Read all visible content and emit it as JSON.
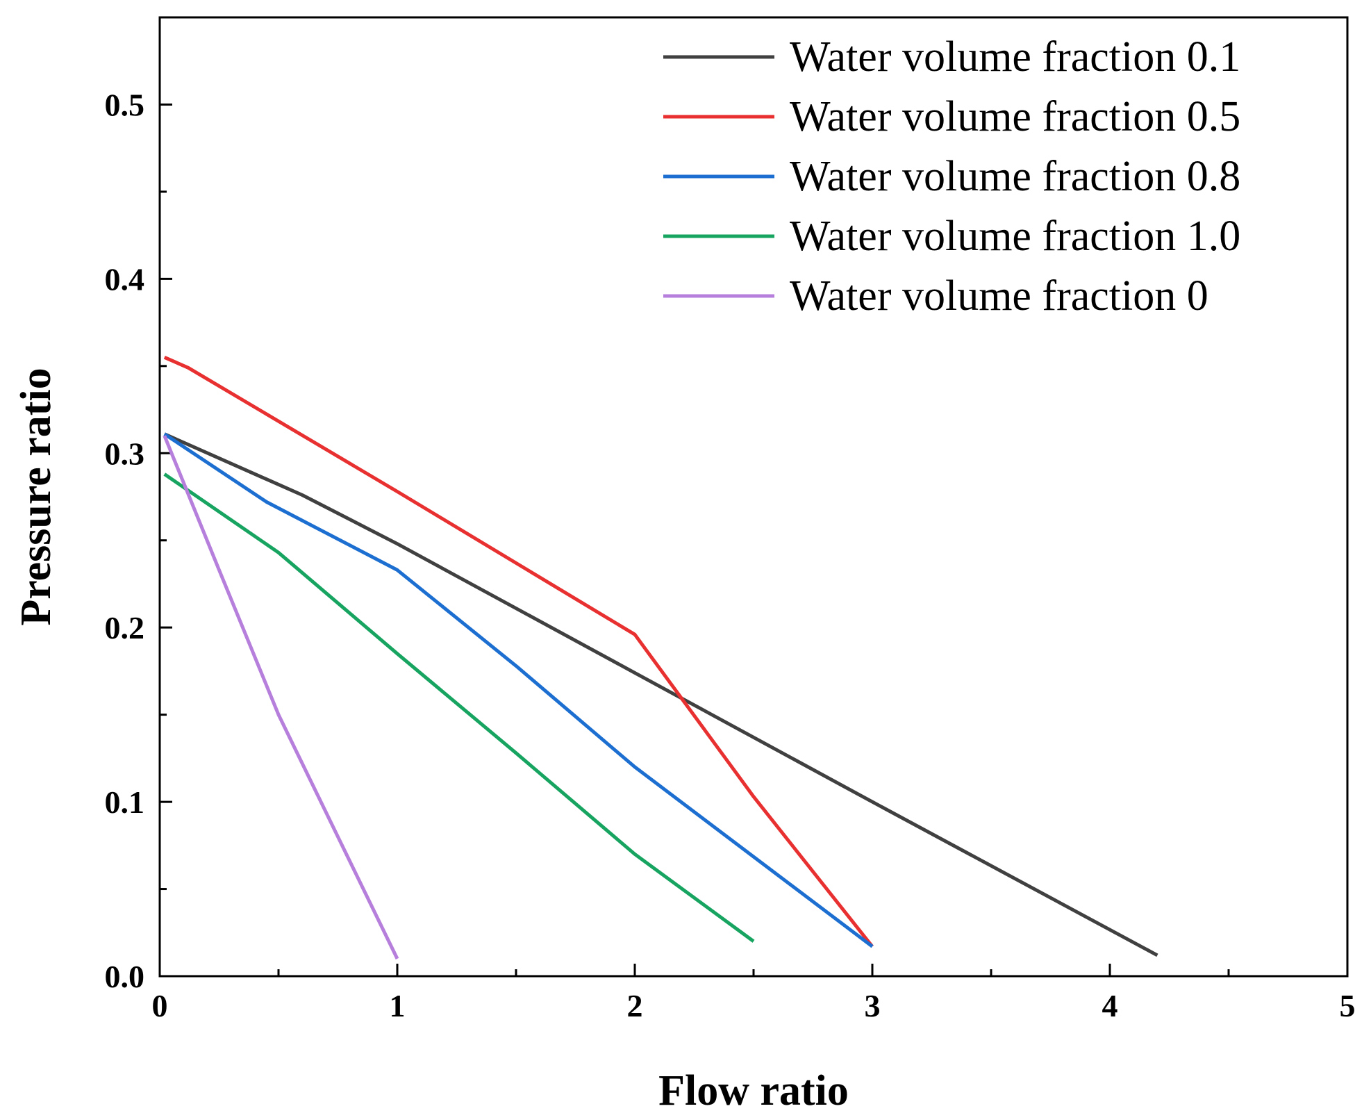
{
  "chart_data": {
    "type": "line",
    "title": "",
    "xlabel": "Flow ratio",
    "ylabel": "Pressure ratio",
    "xlim": [
      0,
      5
    ],
    "ylim": [
      0,
      0.55
    ],
    "xticks": [
      0,
      1,
      2,
      3,
      4,
      5
    ],
    "xtick_labels": [
      "0",
      "1",
      "2",
      "3",
      "4",
      "5"
    ],
    "yticks": [
      0.0,
      0.1,
      0.2,
      0.3,
      0.4,
      0.5
    ],
    "ytick_labels": [
      "0.0",
      "0.1",
      "0.2",
      "0.3",
      "0.4",
      "0.5"
    ],
    "legend_position": "top-right",
    "series": [
      {
        "name": "Water volume fraction 0.1",
        "color": "#404040",
        "x": [
          0.02,
          0.6,
          1.0,
          2.0,
          3.0,
          4.2
        ],
        "y": [
          0.311,
          0.276,
          0.248,
          0.174,
          0.1,
          0.012
        ]
      },
      {
        "name": "Water volume fraction 0.5",
        "color": "#e83030",
        "x": [
          0.02,
          0.12,
          1.0,
          2.0,
          2.5,
          3.0
        ],
        "y": [
          0.355,
          0.349,
          0.278,
          0.196,
          0.103,
          0.017
        ]
      },
      {
        "name": "Water volume fraction 0.8",
        "color": "#1c6fd0",
        "x": [
          0.02,
          0.45,
          1.0,
          1.5,
          2.0,
          3.0
        ],
        "y": [
          0.311,
          0.272,
          0.233,
          0.178,
          0.12,
          0.017
        ]
      },
      {
        "name": "Water volume fraction 1.0",
        "color": "#17a460",
        "x": [
          0.02,
          0.5,
          1.0,
          1.5,
          2.0,
          2.5
        ],
        "y": [
          0.288,
          0.243,
          0.185,
          0.128,
          0.07,
          0.02
        ]
      },
      {
        "name": "Water volume fraction 0",
        "color": "#b77fdc",
        "x": [
          0.02,
          0.25,
          0.5,
          0.75,
          1.0
        ],
        "y": [
          0.31,
          0.233,
          0.15,
          0.08,
          0.01
        ]
      }
    ]
  }
}
